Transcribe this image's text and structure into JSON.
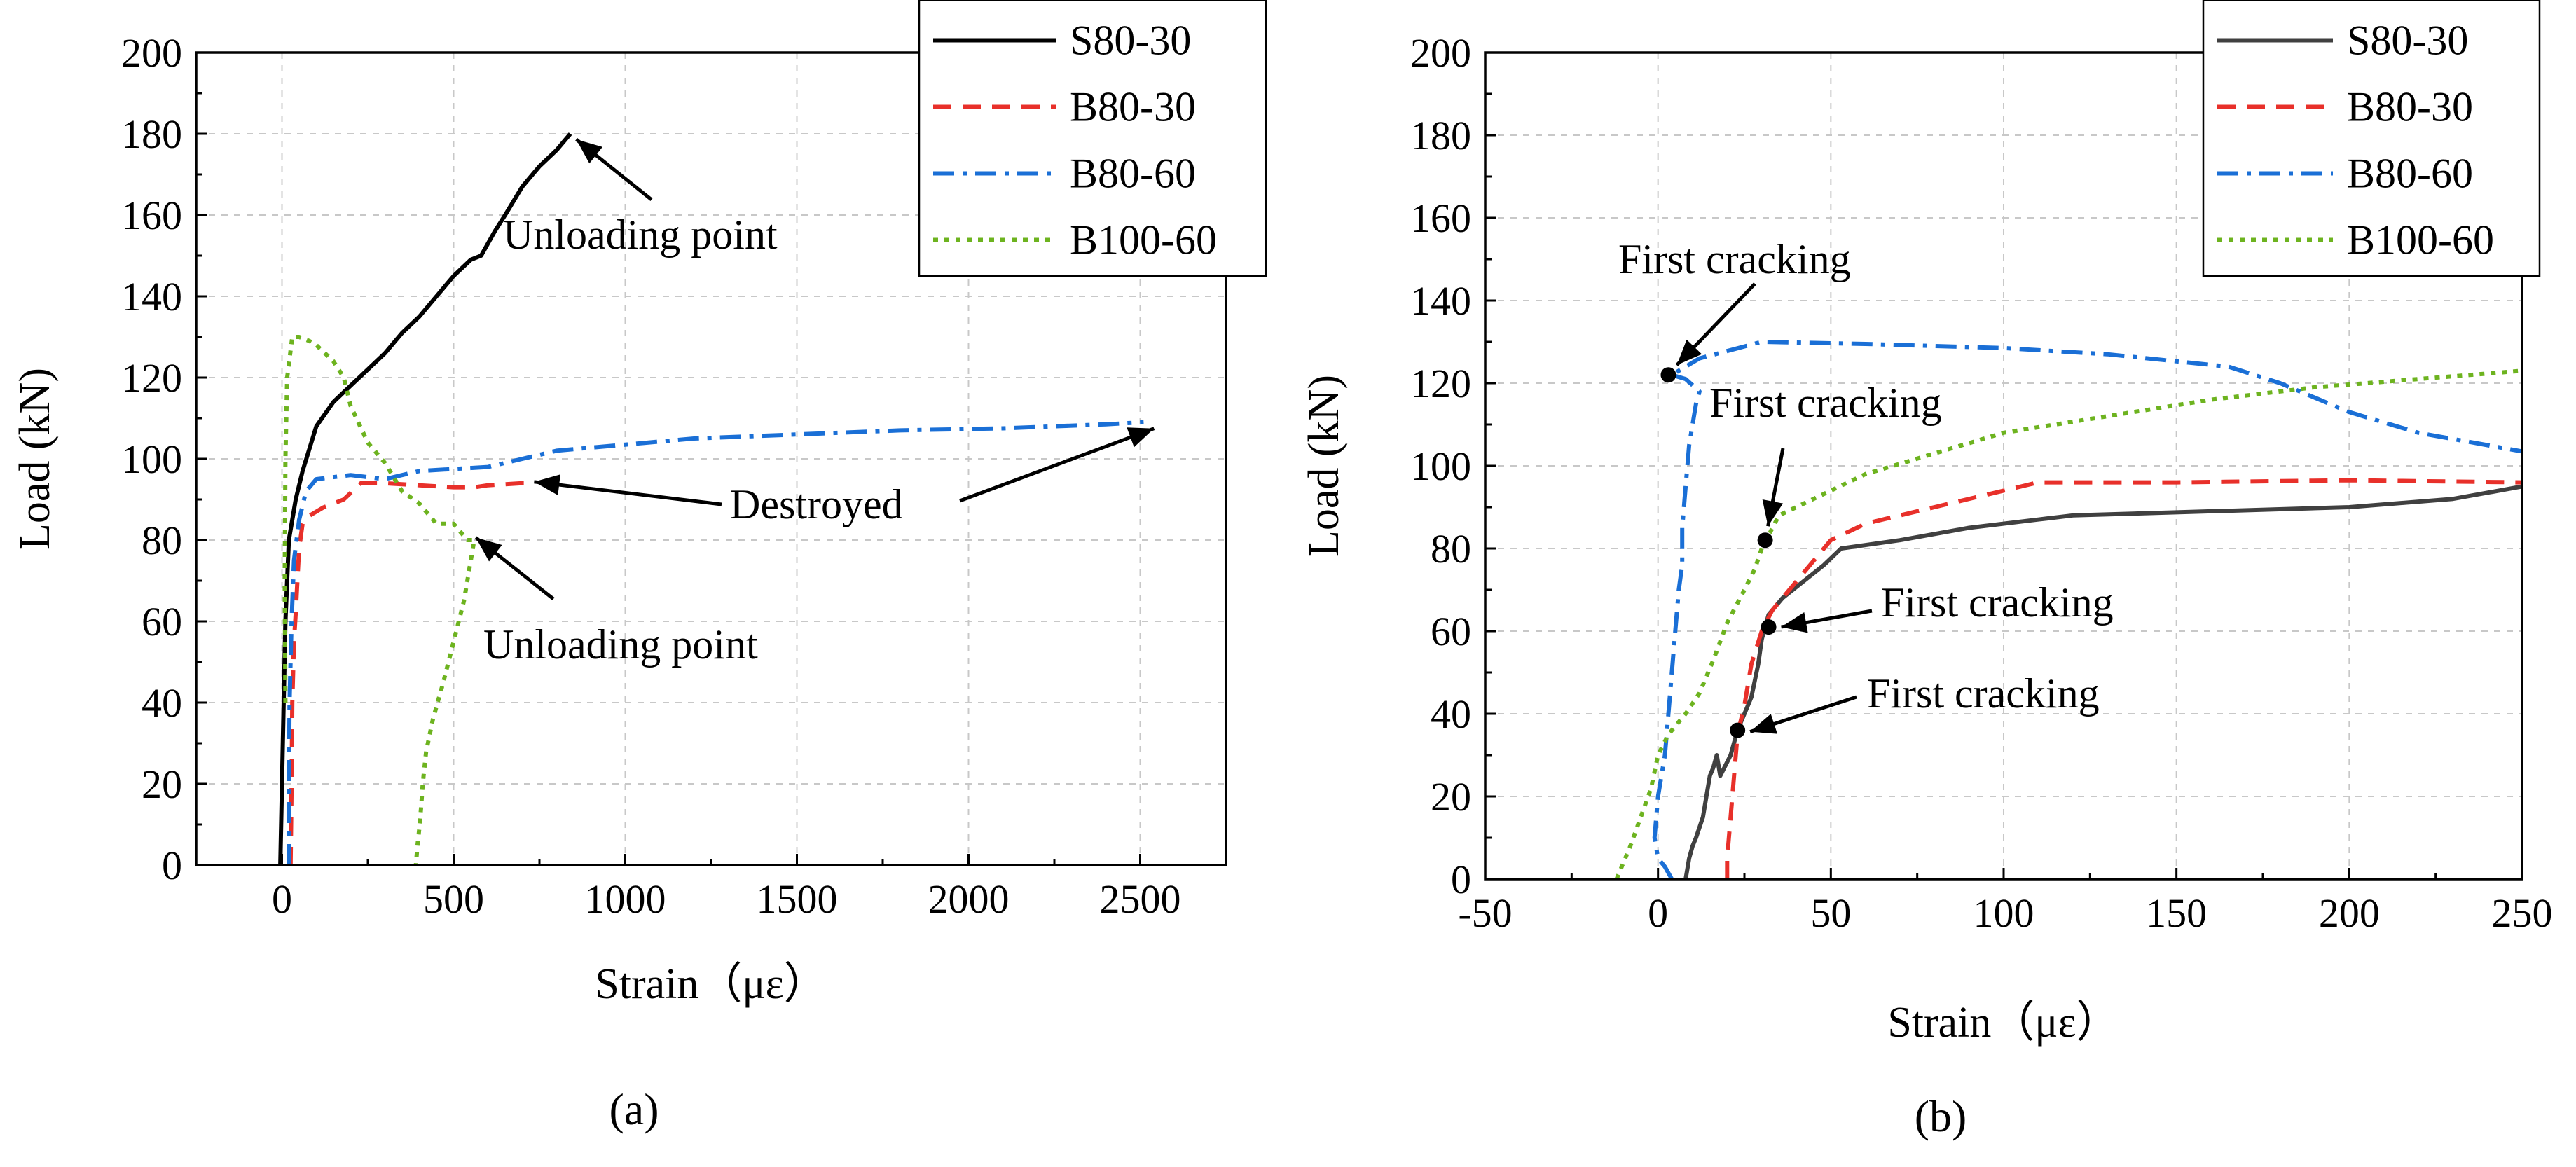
{
  "chart_data": [
    {
      "type": "line",
      "panel_label": "(a)",
      "xlabel": "Strain（με）",
      "ylabel": "Load (kN)",
      "xlim": [
        -250,
        2750
      ],
      "ylim": [
        0,
        200
      ],
      "xticks": [
        0,
        500,
        1000,
        1500,
        2000,
        2500
      ],
      "yticks": [
        0,
        20,
        40,
        60,
        80,
        100,
        120,
        140,
        160,
        180,
        200
      ],
      "grid": true,
      "legend_position": "top-right",
      "series": [
        {
          "name": "S80-30",
          "color": "#000000",
          "dash": "solid",
          "x": [
            -5,
            0,
            5,
            10,
            20,
            40,
            60,
            100,
            150,
            200,
            250,
            300,
            350,
            400,
            450,
            500,
            550,
            580,
            620,
            650,
            700,
            750,
            800,
            830,
            840
          ],
          "y": [
            0,
            20,
            40,
            60,
            80,
            90,
            97,
            108,
            114,
            118,
            122,
            126,
            131,
            135,
            140,
            145,
            149,
            150,
            156,
            160,
            167,
            172,
            176,
            179,
            180
          ]
        },
        {
          "name": "B80-30",
          "color": "#e8302a",
          "dash": "dashed",
          "x": [
            25,
            28,
            30,
            35,
            40,
            45,
            50,
            60,
            80,
            120,
            180,
            230,
            300,
            400,
            500,
            560,
            600,
            700,
            710
          ],
          "y": [
            0,
            20,
            40,
            55,
            62,
            70,
            78,
            84,
            86,
            88,
            90,
            94,
            94,
            93.5,
            93,
            93,
            93.5,
            94,
            94
          ]
        },
        {
          "name": "B80-60",
          "color": "#1a6fd6",
          "dash": "dashdot",
          "x": [
            20,
            20,
            22,
            28,
            35,
            50,
            70,
            100,
            200,
            300,
            400,
            500,
            600,
            700,
            800,
            1000,
            1200,
            1500,
            1800,
            2100,
            2400,
            2510
          ],
          "y": [
            0,
            20,
            40,
            60,
            75,
            85,
            92,
            95,
            96,
            95,
            97,
            97.5,
            98,
            100,
            102,
            103.5,
            105,
            106,
            107,
            107.5,
            108.5,
            109
          ]
        },
        {
          "name": "B100-60",
          "color": "#6db31f",
          "dash": "dotted",
          "x": [
            10,
            8,
            10,
            15,
            30,
            50,
            80,
            100,
            150,
            180,
            200,
            250,
            300,
            350,
            400,
            450,
            500,
            540,
            560,
            530,
            500,
            470,
            440,
            420,
            410,
            405,
            400,
            395,
            390
          ],
          "y": [
            40,
            70,
            100,
            120,
            130,
            130,
            129,
            128,
            124,
            120,
            113,
            104,
            99,
            92,
            89,
            84,
            84,
            80,
            80,
            65,
            55,
            45,
            36,
            28,
            20,
            14,
            9,
            5,
            0
          ]
        }
      ],
      "annotations": [
        {
          "text": "Unloading point",
          "target": [
            845,
            180
          ]
        },
        {
          "text": "Destroyed",
          "targets": [
            [
              710,
              94
            ],
            [
              2520,
              108.5
            ]
          ]
        },
        {
          "text": "Unloading point",
          "target": [
            540,
            82
          ]
        }
      ]
    },
    {
      "type": "line",
      "panel_label": "(b)",
      "xlabel": "Strain（με）",
      "ylabel": "Load (kN)",
      "xlim": [
        -50,
        250
      ],
      "ylim": [
        0,
        200
      ],
      "xticks": [
        -50,
        0,
        50,
        100,
        150,
        200,
        250
      ],
      "yticks": [
        0,
        20,
        40,
        60,
        80,
        100,
        120,
        140,
        160,
        180,
        200
      ],
      "grid": true,
      "legend_position": "top-right",
      "series": [
        {
          "name": "S80-30",
          "color": "#404040",
          "dash": "solid",
          "x": [
            8,
            9,
            10,
            11,
            13,
            14,
            15,
            16,
            17,
            18,
            21,
            23,
            25,
            27,
            28,
            29,
            30,
            31,
            32,
            36,
            42,
            48,
            53,
            70,
            90,
            110,
            120,
            160,
            200,
            230,
            250
          ],
          "y": [
            0,
            5,
            8,
            10,
            15,
            20,
            25,
            27,
            30,
            25,
            30,
            36,
            40,
            44,
            48,
            52,
            58,
            61,
            64,
            68,
            72,
            76,
            80,
            82,
            85,
            87,
            88,
            89,
            90,
            92,
            95
          ]
        },
        {
          "name": "B80-30",
          "color": "#e8302a",
          "dash": "dashed",
          "x": [
            20,
            20,
            21,
            22,
            23,
            25,
            27,
            30,
            33,
            38,
            42,
            50,
            60,
            80,
            100,
            110,
            150,
            200,
            250
          ],
          "y": [
            0,
            5,
            15,
            25,
            35,
            42,
            52,
            60,
            65,
            70,
            74,
            82,
            86,
            90,
            94,
            96,
            96,
            96.5,
            96
          ]
        },
        {
          "name": "B80-60",
          "color": "#1a6fd6",
          "dash": "dashdot",
          "x": [
            4,
            2,
            0,
            -1,
            0,
            2,
            3,
            4,
            5,
            6,
            7,
            7,
            8,
            9,
            10,
            11,
            12,
            8,
            4,
            12,
            30,
            60,
            100,
            130,
            165,
            180,
            200,
            220,
            240,
            250
          ],
          "y": [
            0,
            3,
            5,
            10,
            20,
            30,
            40,
            50,
            60,
            70,
            76,
            85,
            95,
            105,
            110,
            115,
            118,
            121,
            122,
            126,
            130,
            129.5,
            128.5,
            127,
            124,
            120,
            113,
            108,
            105,
            103.5
          ]
        },
        {
          "name": "B100-60",
          "color": "#6db31f",
          "dash": "dotted",
          "x": [
            -12,
            -8,
            -5,
            -2,
            0,
            3,
            8,
            12,
            16,
            20,
            25,
            28,
            30,
            35,
            40,
            45,
            50,
            60,
            80,
            100,
            130,
            160,
            190,
            220,
            250
          ],
          "y": [
            0,
            8,
            15,
            22,
            30,
            35,
            40,
            45,
            53,
            62,
            70,
            75,
            80,
            88,
            90,
            92,
            94,
            98,
            103,
            108,
            112,
            116,
            119,
            121,
            123
          ]
        }
      ],
      "cracking_points": [
        {
          "text": "First cracking",
          "x": 3,
          "y": 122
        },
        {
          "text": "First cracking",
          "x": 31,
          "y": 82
        },
        {
          "text": "First cracking",
          "x": 32,
          "y": 61
        },
        {
          "text": "First cracking",
          "x": 23,
          "y": 36
        }
      ]
    }
  ]
}
